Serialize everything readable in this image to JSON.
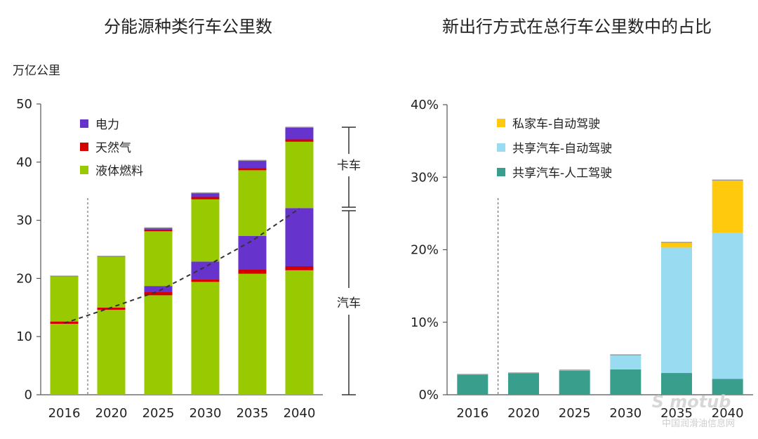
{
  "colors": {
    "liquid": "#99c900",
    "gas": "#d40000",
    "electric": "#6633cc",
    "private_av": "#ffc90e",
    "shared_av": "#99dcf2",
    "shared_manual": "#3a9e8c",
    "axis": "#555555"
  },
  "chart_data": [
    {
      "type": "bar",
      "stacked": true,
      "title": "分能源种类行车公里数",
      "ylabel": "万亿公里",
      "ylim": [
        0,
        50
      ],
      "yticks": [
        "0",
        "10",
        "20",
        "30",
        "40",
        "50"
      ],
      "categories": [
        "2016",
        "2020",
        "2025",
        "2030",
        "2035",
        "2040"
      ],
      "legend_position": "top-left",
      "series": [
        {
          "name": "液体燃料",
          "color_key": "liquid",
          "values": [
            12.2,
            14.6,
            17.1,
            19.4,
            20.8,
            21.4
          ]
        },
        {
          "name": "天然气",
          "color_key": "gas",
          "values": [
            0.4,
            0.4,
            0.6,
            0.5,
            0.7,
            0.7
          ]
        },
        {
          "name": "电力",
          "color_key": "electric",
          "values": [
            0,
            0,
            1.0,
            3.0,
            5.8,
            10.0
          ]
        },
        {
          "name": "液体燃料",
          "color_key": "liquid",
          "values": [
            7.7,
            8.7,
            9.4,
            10.7,
            11.3,
            11.4
          ]
        },
        {
          "name": "天然气",
          "color_key": "gas",
          "values": [
            0.1,
            0.1,
            0.3,
            0.4,
            0.4,
            0.4
          ]
        },
        {
          "name": "电力",
          "color_key": "electric",
          "values": [
            0,
            0,
            0.3,
            0.7,
            1.3,
            2.1
          ]
        }
      ],
      "legend": [
        "电力",
        "天然气",
        "液体燃料"
      ],
      "dashed_trend": [
        12.3,
        15.0,
        17.8,
        22.0,
        26.5,
        32.0
      ],
      "separator_after_index": 0,
      "side_labels": {
        "upper": "卡车",
        "lower": "汽车"
      },
      "upper_range": [
        32,
        46
      ],
      "lower_range": [
        0,
        32
      ]
    },
    {
      "type": "bar",
      "stacked": true,
      "title": "新出行方式在总行车公里数中的占比",
      "ylim": [
        0,
        40
      ],
      "yticks": [
        "0%",
        "10%",
        "20%",
        "30%",
        "40%"
      ],
      "categories": [
        "2016",
        "2020",
        "2025",
        "2030",
        "2035",
        "2040"
      ],
      "legend_position": "top-left",
      "series": [
        {
          "name": "共享汽车-人工驾驶",
          "color_key": "shared_manual",
          "values": [
            2.8,
            3.0,
            3.3,
            3.5,
            3.0,
            2.2
          ]
        },
        {
          "name": "共享汽车-自动驾驶",
          "color_key": "shared_av",
          "values": [
            0,
            0,
            0.1,
            2.0,
            17.3,
            20.1
          ]
        },
        {
          "name": "私家车-自动驾驶",
          "color_key": "private_av",
          "values": [
            0,
            0,
            0,
            0,
            0.7,
            7.3
          ]
        }
      ],
      "legend": [
        "私家车-自动驾驶",
        "共享汽车-自动驾驶",
        "共享汽车-人工驾驶"
      ],
      "separator_after_index": 0
    }
  ],
  "watermark": {
    "logo": "S motub",
    "site": "中国润滑油信息网"
  }
}
